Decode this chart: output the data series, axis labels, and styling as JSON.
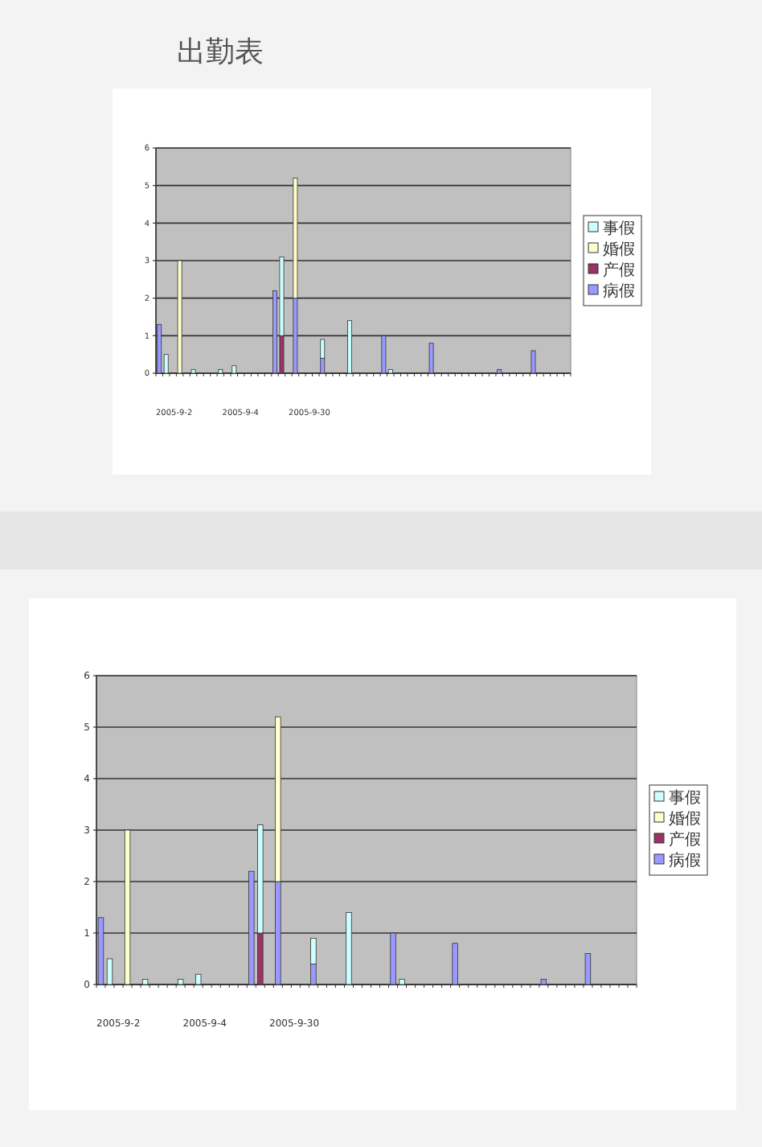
{
  "chart_data": [
    {
      "type": "bar",
      "title": "出勤表",
      "stacked": true,
      "ylim": [
        0,
        6
      ],
      "yticks": [
        0,
        1,
        2,
        3,
        4,
        5,
        6
      ],
      "grid": "y",
      "legend": "right",
      "categories": [
        null,
        null,
        null,
        null,
        null,
        null,
        null,
        null,
        null,
        null,
        null,
        null,
        null,
        null,
        null,
        null,
        null,
        null,
        null,
        null,
        null,
        null,
        null,
        null,
        null,
        null,
        null,
        null,
        null,
        null,
        null,
        null,
        null,
        null,
        null,
        null,
        null,
        null,
        null,
        null,
        null,
        null,
        null,
        null,
        null,
        null,
        null,
        null,
        null,
        null,
        null,
        null,
        null,
        null,
        null,
        null,
        null,
        null,
        null,
        null,
        null
      ],
      "series": [
        {
          "name": "病假",
          "color": "#9999ff",
          "values": [
            1.3,
            null,
            null,
            null,
            null,
            null,
            null,
            null,
            null,
            null,
            null,
            null,
            null,
            null,
            null,
            null,
            null,
            2.2,
            null,
            null,
            2.0,
            null,
            null,
            null,
            0.4,
            null,
            null,
            null,
            null,
            null,
            null,
            null,
            null,
            1.0,
            null,
            null,
            null,
            null,
            null,
            null,
            0.8,
            null,
            null,
            null,
            null,
            null,
            null,
            null,
            null,
            null,
            0.1,
            null,
            null,
            null,
            null,
            0.6,
            null,
            null,
            null,
            null,
            null
          ]
        },
        {
          "name": "产假",
          "color": "#993366",
          "values": [
            null,
            null,
            null,
            null,
            null,
            null,
            null,
            null,
            null,
            null,
            null,
            null,
            null,
            null,
            null,
            null,
            null,
            null,
            1.0,
            null,
            null,
            null,
            null,
            null,
            null,
            null,
            null,
            null,
            null,
            null,
            null,
            null,
            null,
            null,
            null,
            null,
            null,
            null,
            null,
            null,
            null,
            null,
            null,
            null,
            null,
            null,
            null,
            null,
            null,
            null,
            null,
            null,
            null,
            null,
            null,
            null,
            null,
            null,
            null,
            null,
            null
          ]
        },
        {
          "name": "婚假",
          "color": "#ffffcc",
          "values": [
            null,
            null,
            null,
            3.0,
            null,
            null,
            null,
            null,
            null,
            null,
            null,
            null,
            null,
            null,
            null,
            null,
            null,
            null,
            null,
            null,
            3.2,
            null,
            null,
            null,
            null,
            null,
            null,
            null,
            null,
            null,
            null,
            null,
            null,
            null,
            null,
            null,
            null,
            null,
            null,
            null,
            null,
            null,
            null,
            null,
            null,
            null,
            null,
            null,
            null,
            null,
            null,
            null,
            null,
            null,
            null,
            null,
            null,
            null,
            null,
            null,
            null
          ]
        },
        {
          "name": "事假",
          "color": "#ccffff",
          "values": [
            null,
            0.5,
            null,
            null,
            null,
            0.1,
            null,
            null,
            null,
            0.1,
            null,
            0.2,
            null,
            null,
            null,
            null,
            null,
            null,
            2.1,
            null,
            null,
            null,
            null,
            null,
            0.5,
            null,
            null,
            null,
            1.4,
            null,
            null,
            null,
            null,
            null,
            0.1,
            null,
            null,
            null,
            null,
            null,
            null,
            null,
            null,
            null,
            null,
            null,
            null,
            null,
            null,
            null,
            null,
            null,
            null,
            null,
            null,
            null,
            null,
            null,
            null,
            null,
            null
          ]
        }
      ],
      "annotations": [
        "2005-9-2",
        "2005-9-4",
        "2005-9-30"
      ]
    },
    {
      "type": "bar",
      "stacked": true,
      "ylim": [
        0,
        6
      ],
      "yticks": [
        0,
        1,
        2,
        3,
        4,
        5,
        6
      ],
      "grid": "y",
      "legend": "right",
      "categories": [
        null,
        null,
        null,
        null,
        null,
        null,
        null,
        null,
        null,
        null,
        null,
        null,
        null,
        null,
        null,
        null,
        null,
        null,
        null,
        null,
        null,
        null,
        null,
        null,
        null,
        null,
        null,
        null,
        null,
        null,
        null,
        null,
        null,
        null,
        null,
        null,
        null,
        null,
        null,
        null,
        null,
        null,
        null,
        null,
        null,
        null,
        null,
        null,
        null,
        null,
        null,
        null,
        null,
        null,
        null,
        null,
        null,
        null,
        null,
        null,
        null
      ],
      "series": [
        {
          "name": "病假",
          "color": "#9999ff",
          "values": [
            1.3,
            null,
            null,
            null,
            null,
            null,
            null,
            null,
            null,
            null,
            null,
            null,
            null,
            null,
            null,
            null,
            null,
            2.2,
            null,
            null,
            2.0,
            null,
            null,
            null,
            0.4,
            null,
            null,
            null,
            null,
            null,
            null,
            null,
            null,
            1.0,
            null,
            null,
            null,
            null,
            null,
            null,
            0.8,
            null,
            null,
            null,
            null,
            null,
            null,
            null,
            null,
            null,
            0.1,
            null,
            null,
            null,
            null,
            0.6,
            null,
            null,
            null,
            null,
            null
          ]
        },
        {
          "name": "产假",
          "color": "#993366",
          "values": [
            null,
            null,
            null,
            null,
            null,
            null,
            null,
            null,
            null,
            null,
            null,
            null,
            null,
            null,
            null,
            null,
            null,
            null,
            1.0,
            null,
            null,
            null,
            null,
            null,
            null,
            null,
            null,
            null,
            null,
            null,
            null,
            null,
            null,
            null,
            null,
            null,
            null,
            null,
            null,
            null,
            null,
            null,
            null,
            null,
            null,
            null,
            null,
            null,
            null,
            null,
            null,
            null,
            null,
            null,
            null,
            null,
            null,
            null,
            null,
            null,
            null
          ]
        },
        {
          "name": "婚假",
          "color": "#ffffcc",
          "values": [
            null,
            null,
            null,
            3.0,
            null,
            null,
            null,
            null,
            null,
            null,
            null,
            null,
            null,
            null,
            null,
            null,
            null,
            null,
            null,
            null,
            3.2,
            null,
            null,
            null,
            null,
            null,
            null,
            null,
            null,
            null,
            null,
            null,
            null,
            null,
            null,
            null,
            null,
            null,
            null,
            null,
            null,
            null,
            null,
            null,
            null,
            null,
            null,
            null,
            null,
            null,
            null,
            null,
            null,
            null,
            null,
            null,
            null,
            null,
            null,
            null,
            null
          ]
        },
        {
          "name": "事假",
          "color": "#ccffff",
          "values": [
            null,
            0.5,
            null,
            null,
            null,
            0.1,
            null,
            null,
            null,
            0.1,
            null,
            0.2,
            null,
            null,
            null,
            null,
            null,
            null,
            2.1,
            null,
            null,
            null,
            null,
            null,
            0.5,
            null,
            null,
            null,
            1.4,
            null,
            null,
            null,
            null,
            null,
            0.1,
            null,
            null,
            null,
            null,
            null,
            null,
            null,
            null,
            null,
            null,
            null,
            null,
            null,
            null,
            null,
            null,
            null,
            null,
            null,
            null,
            null,
            null,
            null,
            null,
            null,
            null
          ]
        }
      ],
      "annotations": [
        "2005-9-2",
        "2005-9-4",
        "2005-9-30"
      ]
    }
  ]
}
